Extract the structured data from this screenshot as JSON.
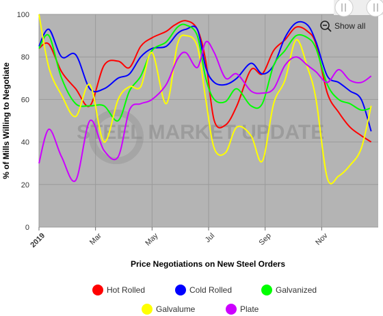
{
  "chart_data": {
    "type": "line",
    "title": "",
    "xlabel": "Price Negotiations on New Steel Orders",
    "ylabel": "% of Mills Willing to Negotiate",
    "ylim": [
      0,
      100
    ],
    "yticks": [
      0,
      20,
      40,
      60,
      80,
      100
    ],
    "xlim": [
      0,
      12
    ],
    "xticks": [
      {
        "x": 0,
        "label": "2019",
        "bold": true
      },
      {
        "x": 2,
        "label": "Mar",
        "bold": false
      },
      {
        "x": 4,
        "label": "May",
        "bold": false
      },
      {
        "x": 6,
        "label": "Jul",
        "bold": false
      },
      {
        "x": 8,
        "label": "Sep",
        "bold": false
      },
      {
        "x": 10,
        "label": "Nov",
        "bold": false
      }
    ],
    "grid": true,
    "legend_position": "bottom",
    "watermark": "STEEL MARKET UPDATE",
    "series": [
      {
        "name": "Hot Rolled",
        "color": "#ff0000",
        "points": [
          [
            0,
            84
          ],
          [
            0.35,
            86
          ],
          [
            0.8,
            73
          ],
          [
            1.3,
            65
          ],
          [
            1.8,
            57
          ],
          [
            2.3,
            76
          ],
          [
            2.8,
            78
          ],
          [
            3.2,
            75
          ],
          [
            3.6,
            85
          ],
          [
            4.0,
            89
          ],
          [
            4.5,
            92
          ],
          [
            4.8,
            95
          ],
          [
            5.2,
            97
          ],
          [
            5.6,
            93
          ],
          [
            5.9,
            78
          ],
          [
            6.2,
            50
          ],
          [
            6.6,
            48
          ],
          [
            7.0,
            57
          ],
          [
            7.5,
            74
          ],
          [
            7.9,
            72
          ],
          [
            8.3,
            83
          ],
          [
            8.7,
            88
          ],
          [
            9.1,
            94
          ],
          [
            9.5,
            92
          ],
          [
            9.8,
            86
          ],
          [
            10.2,
            63
          ],
          [
            10.6,
            54
          ],
          [
            11.0,
            47
          ],
          [
            11.4,
            43
          ],
          [
            11.75,
            40
          ]
        ]
      },
      {
        "name": "Cold Rolled",
        "color": "#0000ff",
        "points": [
          [
            0,
            85
          ],
          [
            0.35,
            93
          ],
          [
            0.8,
            80
          ],
          [
            1.3,
            81
          ],
          [
            1.8,
            65
          ],
          [
            2.3,
            65
          ],
          [
            2.8,
            70
          ],
          [
            3.2,
            72
          ],
          [
            3.6,
            80
          ],
          [
            4.0,
            84
          ],
          [
            4.5,
            85
          ],
          [
            4.9,
            91
          ],
          [
            5.2,
            93
          ],
          [
            5.6,
            93
          ],
          [
            5.9,
            75
          ],
          [
            6.2,
            68
          ],
          [
            6.6,
            67
          ],
          [
            7.0,
            70
          ],
          [
            7.5,
            77
          ],
          [
            7.9,
            72
          ],
          [
            8.3,
            76
          ],
          [
            8.7,
            89
          ],
          [
            9.1,
            96
          ],
          [
            9.5,
            95
          ],
          [
            9.8,
            87
          ],
          [
            10.2,
            71
          ],
          [
            10.6,
            68
          ],
          [
            11.0,
            64
          ],
          [
            11.4,
            60
          ],
          [
            11.75,
            45
          ]
        ]
      },
      {
        "name": "Galvanized",
        "color": "#00ff00",
        "points": [
          [
            0,
            84
          ],
          [
            0.35,
            90
          ],
          [
            0.8,
            70
          ],
          [
            1.3,
            58
          ],
          [
            1.8,
            57
          ],
          [
            2.3,
            57
          ],
          [
            2.8,
            50
          ],
          [
            3.2,
            64
          ],
          [
            3.6,
            71
          ],
          [
            4.0,
            83
          ],
          [
            4.5,
            87
          ],
          [
            4.9,
            94
          ],
          [
            5.2,
            95
          ],
          [
            5.6,
            90
          ],
          [
            5.9,
            70
          ],
          [
            6.2,
            60
          ],
          [
            6.6,
            59
          ],
          [
            7.0,
            65
          ],
          [
            7.5,
            57
          ],
          [
            7.9,
            58
          ],
          [
            8.3,
            76
          ],
          [
            8.7,
            83
          ],
          [
            9.1,
            90
          ],
          [
            9.5,
            89
          ],
          [
            9.8,
            84
          ],
          [
            10.2,
            67
          ],
          [
            10.6,
            60
          ],
          [
            11.0,
            58
          ],
          [
            11.4,
            55
          ],
          [
            11.75,
            56
          ]
        ]
      },
      {
        "name": "Galvalume",
        "color": "#ffff00",
        "points": [
          [
            0,
            100
          ],
          [
            0.35,
            75
          ],
          [
            0.8,
            62
          ],
          [
            1.3,
            52
          ],
          [
            1.8,
            67
          ],
          [
            2.3,
            40
          ],
          [
            2.8,
            60
          ],
          [
            3.2,
            66
          ],
          [
            3.6,
            66
          ],
          [
            4.0,
            82
          ],
          [
            4.5,
            58
          ],
          [
            4.9,
            86
          ],
          [
            5.2,
            90
          ],
          [
            5.6,
            85
          ],
          [
            5.9,
            60
          ],
          [
            6.2,
            37
          ],
          [
            6.6,
            35
          ],
          [
            7.0,
            47
          ],
          [
            7.5,
            43
          ],
          [
            7.9,
            31
          ],
          [
            8.3,
            58
          ],
          [
            8.7,
            69
          ],
          [
            9.1,
            88
          ],
          [
            9.5,
            75
          ],
          [
            9.8,
            60
          ],
          [
            10.2,
            23
          ],
          [
            10.6,
            24
          ],
          [
            11.0,
            29
          ],
          [
            11.4,
            37
          ],
          [
            11.75,
            57
          ]
        ]
      },
      {
        "name": "Plate",
        "color": "#cc00ff",
        "points": [
          [
            0,
            30
          ],
          [
            0.35,
            46
          ],
          [
            0.8,
            33
          ],
          [
            1.3,
            22
          ],
          [
            1.8,
            50
          ],
          [
            2.3,
            36
          ],
          [
            2.8,
            33
          ],
          [
            3.2,
            55
          ],
          [
            3.6,
            58
          ],
          [
            4.0,
            60
          ],
          [
            4.5,
            67
          ],
          [
            4.9,
            79
          ],
          [
            5.2,
            82
          ],
          [
            5.6,
            75
          ],
          [
            5.9,
            87
          ],
          [
            6.2,
            82
          ],
          [
            6.6,
            70
          ],
          [
            7.0,
            72
          ],
          [
            7.5,
            64
          ],
          [
            7.9,
            63
          ],
          [
            8.3,
            65
          ],
          [
            8.7,
            76
          ],
          [
            9.1,
            80
          ],
          [
            9.5,
            76
          ],
          [
            9.8,
            73
          ],
          [
            10.2,
            68
          ],
          [
            10.6,
            74
          ],
          [
            11.0,
            69
          ],
          [
            11.4,
            68
          ],
          [
            11.75,
            71
          ]
        ]
      }
    ]
  },
  "controls": {
    "show_all_label": "Show all"
  }
}
